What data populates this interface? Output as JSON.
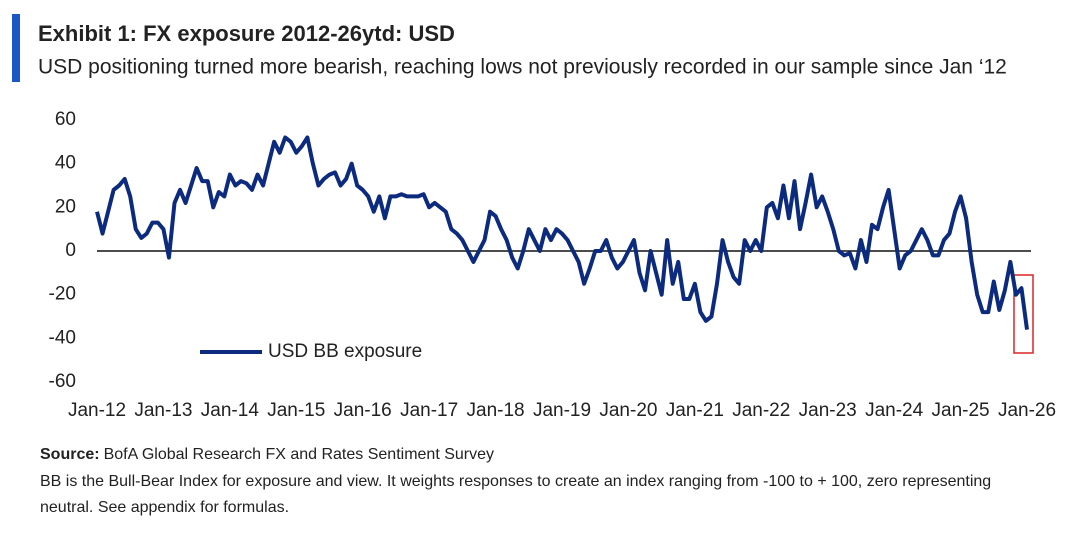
{
  "chart_data": {
    "type": "line",
    "title": "Exhibit 1: FX exposure 2012-26ytd: USD",
    "subtitle": "USD positioning turned more bearish, reaching lows not previously recorded in our sample since Jan ‘12",
    "categories": [
      "Jan-12",
      null,
      null,
      null,
      null,
      null,
      null,
      null,
      null,
      null,
      null,
      null,
      "Jan-13",
      null,
      null,
      null,
      null,
      null,
      null,
      null,
      null,
      null,
      null,
      null,
      "Jan-14",
      null,
      null,
      null,
      null,
      null,
      null,
      null,
      null,
      null,
      null,
      null,
      "Jan-15",
      null,
      null,
      null,
      null,
      null,
      null,
      null,
      null,
      null,
      null,
      null,
      "Jan-16",
      null,
      null,
      null,
      null,
      null,
      null,
      null,
      null,
      null,
      null,
      null,
      "Jan-17",
      null,
      null,
      null,
      null,
      null,
      null,
      null,
      null,
      null,
      null,
      null,
      "Jan-18",
      null,
      null,
      null,
      null,
      null,
      null,
      null,
      null,
      null,
      null,
      null,
      "Jan-19",
      null,
      null,
      null,
      null,
      null,
      null,
      null,
      null,
      null,
      null,
      null,
      "Jan-20",
      null,
      null,
      null,
      null,
      null,
      null,
      null,
      null,
      null,
      null,
      null,
      "Jan-21",
      null,
      null,
      null,
      null,
      null,
      null,
      null,
      null,
      null,
      null,
      null,
      "Jan-22",
      null,
      null,
      null,
      null,
      null,
      null,
      null,
      null,
      null,
      null,
      null,
      "Jan-23",
      null,
      null,
      null,
      null,
      null,
      null,
      null,
      null,
      null,
      null,
      null,
      "Jan-24",
      null,
      null,
      null,
      null,
      null,
      null,
      null,
      null,
      null,
      null,
      null,
      "Jan-25",
      null,
      null,
      null,
      null,
      null,
      null,
      null,
      null,
      null,
      null,
      null,
      "Jan-26"
    ],
    "series": [
      {
        "name": "USD BB exposure",
        "color": "#0d2b7e",
        "values": [
          18,
          8,
          18,
          28,
          30,
          33,
          25,
          10,
          6,
          8,
          13,
          13,
          10,
          -3,
          22,
          28,
          22,
          30,
          38,
          32,
          32,
          20,
          27,
          25,
          35,
          30,
          32,
          31,
          28,
          35,
          30,
          40,
          50,
          45,
          52,
          50,
          45,
          48,
          52,
          40,
          30,
          33,
          35,
          36,
          30,
          33,
          40,
          30,
          28,
          25,
          18,
          25,
          15,
          25,
          25,
          26,
          25,
          25,
          25,
          26,
          20,
          22,
          20,
          18,
          10,
          8,
          5,
          0,
          -5,
          0,
          5,
          18,
          16,
          10,
          5,
          -3,
          -8,
          0,
          10,
          5,
          0,
          10,
          5,
          10,
          8,
          5,
          0,
          -5,
          -15,
          -8,
          0,
          0,
          5,
          -3,
          -8,
          -5,
          0,
          5,
          -10,
          -18,
          0,
          -10,
          -20,
          5,
          -15,
          -5,
          -22,
          -22,
          -15,
          -28,
          -32,
          -30,
          -15,
          5,
          -5,
          -12,
          -15,
          5,
          0,
          5,
          0,
          20,
          22,
          15,
          30,
          15,
          32,
          10,
          22,
          35,
          20,
          25,
          18,
          10,
          0,
          -2,
          -1,
          -8,
          5,
          -5,
          12,
          10,
          20,
          28,
          10,
          -8,
          -2,
          0,
          5,
          10,
          5,
          -2,
          -2,
          5,
          8,
          18,
          25,
          15,
          -5,
          -20,
          -28,
          -28,
          -14,
          -27,
          -18,
          -5,
          -20,
          -17,
          -36
        ]
      }
    ],
    "ylim": [
      -60,
      60
    ],
    "yticks": [
      -60,
      -40,
      -20,
      0,
      20,
      40,
      60
    ],
    "source_label": "Source:",
    "source": "BofA Global Research FX and Rates Sentiment Survey",
    "note": [
      "BB is the Bull-Bear Index for exposure and view. It weights responses to create an index ranging from -100 to + 100, zero representing",
      "neutral. See appendix for formulas."
    ]
  }
}
